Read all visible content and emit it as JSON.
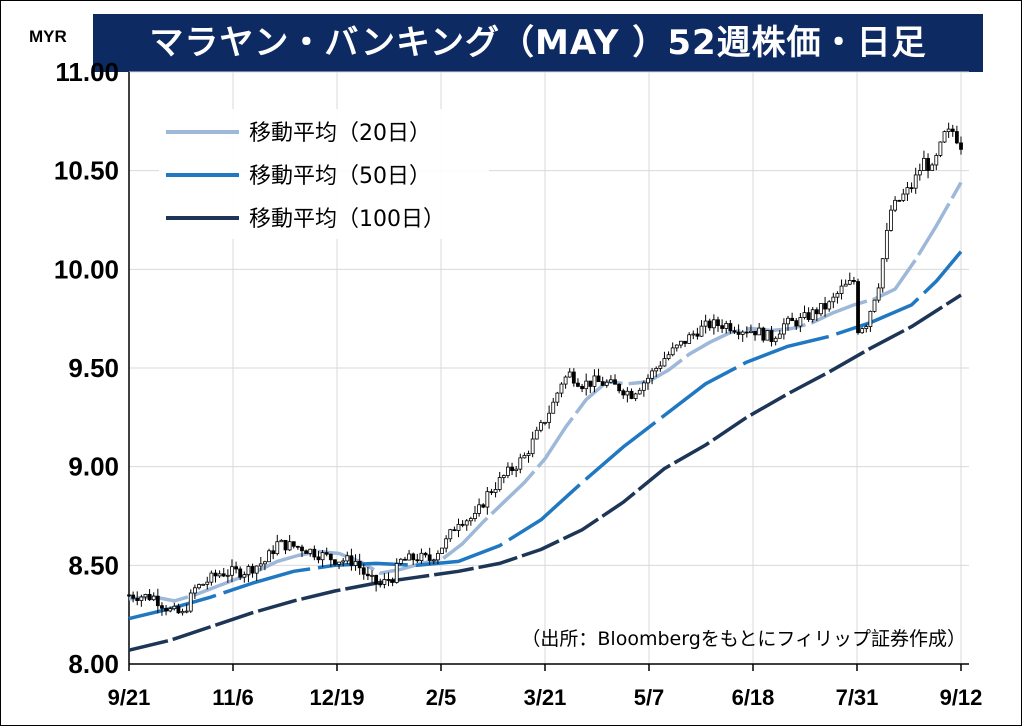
{
  "chart_data": {
    "type": "candlestick",
    "title": "マラヤン・バンキング（MAY ）52週株価・日足",
    "unit": "MYR",
    "ylim": [
      8.0,
      11.0
    ],
    "y_ticks": [
      "8.00",
      "8.50",
      "9.00",
      "9.50",
      "10.00",
      "10.50",
      "11.00"
    ],
    "x_ticks": [
      "9/21",
      "11/6",
      "12/19",
      "2/5",
      "3/21",
      "5/7",
      "6/18",
      "7/31",
      "9/12"
    ],
    "grid": true,
    "legend_position": "top-left",
    "source_note": "（出所：Bloombergをもとにフィリップ証券作成）",
    "colors": {
      "candle": "#000000",
      "ma20": "#9db8d8",
      "ma50": "#1f78c1",
      "ma100": "#1d3557",
      "banner": "#0e2a63"
    },
    "price_path": [
      [
        0,
        8.35
      ],
      [
        6,
        8.34
      ],
      [
        10,
        8.27
      ],
      [
        13,
        8.25
      ],
      [
        16,
        8.38
      ],
      [
        22,
        8.46
      ],
      [
        28,
        8.47
      ],
      [
        33,
        8.52
      ],
      [
        36,
        8.61
      ],
      [
        42,
        8.59
      ],
      [
        47,
        8.55
      ],
      [
        50,
        8.53
      ],
      [
        55,
        8.52
      ],
      [
        58,
        8.43
      ],
      [
        61,
        8.4
      ],
      [
        64,
        8.44
      ],
      [
        66,
        8.52
      ],
      [
        70,
        8.54
      ],
      [
        73,
        8.53
      ],
      [
        77,
        8.62
      ],
      [
        80,
        8.73
      ],
      [
        84,
        8.74
      ],
      [
        87,
        8.86
      ],
      [
        91,
        8.95
      ],
      [
        96,
        9.05
      ],
      [
        100,
        9.2
      ],
      [
        103,
        9.32
      ],
      [
        105,
        9.43
      ],
      [
        107,
        9.47
      ],
      [
        110,
        9.42
      ],
      [
        113,
        9.43
      ],
      [
        116,
        9.42
      ],
      [
        119,
        9.4
      ],
      [
        122,
        9.37
      ],
      [
        126,
        9.45
      ],
      [
        130,
        9.55
      ],
      [
        134,
        9.62
      ],
      [
        138,
        9.69
      ],
      [
        141,
        9.72
      ],
      [
        145,
        9.72
      ],
      [
        148,
        9.7
      ],
      [
        152,
        9.69
      ],
      [
        156,
        9.65
      ],
      [
        159,
        9.72
      ],
      [
        163,
        9.74
      ],
      [
        167,
        9.79
      ],
      [
        170,
        9.82
      ],
      [
        173,
        9.9
      ],
      [
        176,
        9.94
      ],
      [
        177,
        9.7
      ],
      [
        179,
        9.73
      ],
      [
        182,
        9.93
      ],
      [
        185,
        10.3
      ],
      [
        187,
        10.35
      ],
      [
        190,
        10.42
      ],
      [
        193,
        10.55
      ],
      [
        195,
        10.5
      ],
      [
        198,
        10.68
      ],
      [
        200,
        10.7
      ],
      [
        202,
        10.63
      ]
    ],
    "series": [
      {
        "name": "移動平均（20日）",
        "values": [
          [
            0,
            8.33
          ],
          [
            6,
            8.34
          ],
          [
            11,
            8.32
          ],
          [
            16,
            8.35
          ],
          [
            21,
            8.39
          ],
          [
            26,
            8.43
          ],
          [
            31,
            8.47
          ],
          [
            36,
            8.52
          ],
          [
            41,
            8.55
          ],
          [
            46,
            8.57
          ],
          [
            51,
            8.56
          ],
          [
            56,
            8.52
          ],
          [
            61,
            8.46
          ],
          [
            66,
            8.48
          ],
          [
            71,
            8.51
          ],
          [
            76,
            8.53
          ],
          [
            81,
            8.61
          ],
          [
            86,
            8.72
          ],
          [
            91,
            8.82
          ],
          [
            96,
            8.92
          ],
          [
            101,
            9.04
          ],
          [
            106,
            9.2
          ],
          [
            111,
            9.34
          ],
          [
            116,
            9.43
          ],
          [
            121,
            9.42
          ],
          [
            126,
            9.43
          ],
          [
            131,
            9.49
          ],
          [
            136,
            9.57
          ],
          [
            141,
            9.63
          ],
          [
            146,
            9.68
          ],
          [
            151,
            9.7
          ],
          [
            156,
            9.69
          ],
          [
            161,
            9.7
          ],
          [
            166,
            9.73
          ],
          [
            171,
            9.78
          ],
          [
            176,
            9.82
          ],
          [
            181,
            9.85
          ],
          [
            186,
            9.9
          ],
          [
            191,
            10.05
          ],
          [
            196,
            10.22
          ],
          [
            202,
            10.44
          ]
        ]
      },
      {
        "name": "移動平均（50日）",
        "values": [
          [
            0,
            8.23
          ],
          [
            10,
            8.28
          ],
          [
            20,
            8.34
          ],
          [
            30,
            8.41
          ],
          [
            40,
            8.47
          ],
          [
            50,
            8.5
          ],
          [
            60,
            8.51
          ],
          [
            70,
            8.5
          ],
          [
            80,
            8.52
          ],
          [
            90,
            8.6
          ],
          [
            100,
            8.73
          ],
          [
            110,
            8.92
          ],
          [
            120,
            9.1
          ],
          [
            130,
            9.26
          ],
          [
            140,
            9.42
          ],
          [
            150,
            9.53
          ],
          [
            160,
            9.61
          ],
          [
            170,
            9.66
          ],
          [
            180,
            9.73
          ],
          [
            190,
            9.82
          ],
          [
            196,
            9.94
          ],
          [
            202,
            10.09
          ]
        ]
      },
      {
        "name": "移動平均（100日）",
        "values": [
          [
            0,
            8.07
          ],
          [
            10,
            8.12
          ],
          [
            20,
            8.19
          ],
          [
            30,
            8.26
          ],
          [
            40,
            8.32
          ],
          [
            50,
            8.37
          ],
          [
            60,
            8.41
          ],
          [
            70,
            8.44
          ],
          [
            80,
            8.47
          ],
          [
            90,
            8.51
          ],
          [
            100,
            8.58
          ],
          [
            110,
            8.68
          ],
          [
            120,
            8.82
          ],
          [
            130,
            8.99
          ],
          [
            140,
            9.11
          ],
          [
            150,
            9.25
          ],
          [
            160,
            9.37
          ],
          [
            170,
            9.48
          ],
          [
            180,
            9.6
          ],
          [
            190,
            9.71
          ],
          [
            202,
            9.87
          ]
        ]
      }
    ]
  }
}
